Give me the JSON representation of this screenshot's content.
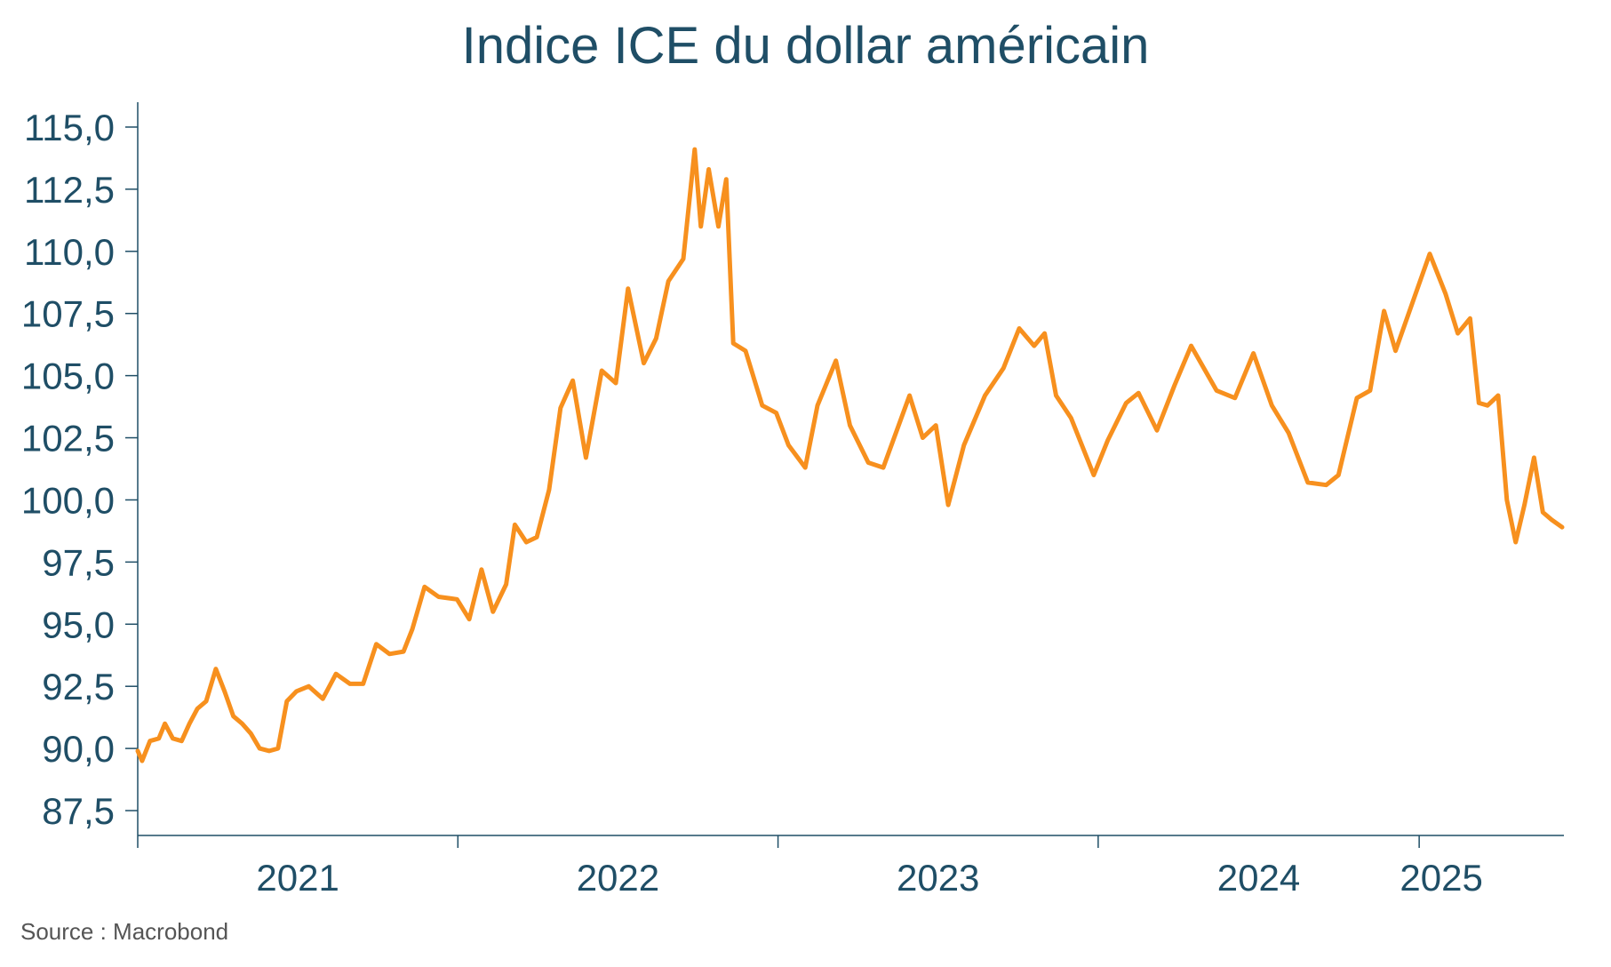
{
  "chart_data": {
    "type": "line",
    "title": "Indice ICE du dollar américain",
    "source": "Source : Macrobond",
    "xlabel": "",
    "ylabel": "",
    "xlim": [
      "2021-01-01",
      "2025-06-15"
    ],
    "ylim": [
      86.5,
      116.0
    ],
    "y_ticks": [
      87.5,
      90.0,
      92.5,
      95.0,
      97.5,
      100.0,
      102.5,
      105.0,
      107.5,
      110.0,
      112.5,
      115.0
    ],
    "y_tick_labels": [
      "87,5",
      "90,0",
      "92,5",
      "95,0",
      "97,5",
      "100,0",
      "102,5",
      "105,0",
      "107,5",
      "110,0",
      "112,5",
      "115,0"
    ],
    "x_ticks": [
      "2021-01-01",
      "2022-01-01",
      "2023-01-01",
      "2024-01-01",
      "2025-01-01"
    ],
    "x_tick_labels": [
      "2021",
      "2022",
      "2023",
      "2024",
      "2025"
    ],
    "grid": false,
    "legend": "none",
    "line_color": "#f7901e",
    "axis_color": "#1f4e66",
    "series": [
      {
        "values": [
          {
            "x": "2021-01-01",
            "y": 89.9
          },
          {
            "x": "2021-01-06",
            "y": 89.5
          },
          {
            "x": "2021-01-15",
            "y": 90.3
          },
          {
            "x": "2021-01-25",
            "y": 90.4
          },
          {
            "x": "2021-02-01",
            "y": 91.0
          },
          {
            "x": "2021-02-10",
            "y": 90.4
          },
          {
            "x": "2021-02-20",
            "y": 90.3
          },
          {
            "x": "2021-03-01",
            "y": 91.0
          },
          {
            "x": "2021-03-10",
            "y": 91.6
          },
          {
            "x": "2021-03-20",
            "y": 91.9
          },
          {
            "x": "2021-03-31",
            "y": 93.2
          },
          {
            "x": "2021-04-10",
            "y": 92.3
          },
          {
            "x": "2021-04-20",
            "y": 91.3
          },
          {
            "x": "2021-04-30",
            "y": 91.0
          },
          {
            "x": "2021-05-10",
            "y": 90.6
          },
          {
            "x": "2021-05-20",
            "y": 90.0
          },
          {
            "x": "2021-05-31",
            "y": 89.9
          },
          {
            "x": "2021-06-10",
            "y": 90.0
          },
          {
            "x": "2021-06-20",
            "y": 91.9
          },
          {
            "x": "2021-07-01",
            "y": 92.3
          },
          {
            "x": "2021-07-15",
            "y": 92.5
          },
          {
            "x": "2021-07-31",
            "y": 92.0
          },
          {
            "x": "2021-08-15",
            "y": 93.0
          },
          {
            "x": "2021-08-31",
            "y": 92.6
          },
          {
            "x": "2021-09-15",
            "y": 92.6
          },
          {
            "x": "2021-09-30",
            "y": 94.2
          },
          {
            "x": "2021-10-15",
            "y": 93.8
          },
          {
            "x": "2021-10-31",
            "y": 93.9
          },
          {
            "x": "2021-11-10",
            "y": 94.8
          },
          {
            "x": "2021-11-24",
            "y": 96.5
          },
          {
            "x": "2021-12-10",
            "y": 96.1
          },
          {
            "x": "2021-12-31",
            "y": 96.0
          },
          {
            "x": "2022-01-14",
            "y": 95.2
          },
          {
            "x": "2022-01-28",
            "y": 97.2
          },
          {
            "x": "2022-02-10",
            "y": 95.5
          },
          {
            "x": "2022-02-25",
            "y": 96.6
          },
          {
            "x": "2022-03-07",
            "y": 99.0
          },
          {
            "x": "2022-03-20",
            "y": 98.3
          },
          {
            "x": "2022-04-01",
            "y": 98.5
          },
          {
            "x": "2022-04-15",
            "y": 100.4
          },
          {
            "x": "2022-04-28",
            "y": 103.7
          },
          {
            "x": "2022-05-12",
            "y": 104.8
          },
          {
            "x": "2022-05-27",
            "y": 101.7
          },
          {
            "x": "2022-06-14",
            "y": 105.2
          },
          {
            "x": "2022-06-30",
            "y": 104.7
          },
          {
            "x": "2022-07-14",
            "y": 108.5
          },
          {
            "x": "2022-08-01",
            "y": 105.5
          },
          {
            "x": "2022-08-15",
            "y": 106.5
          },
          {
            "x": "2022-08-29",
            "y": 108.8
          },
          {
            "x": "2022-09-15",
            "y": 109.7
          },
          {
            "x": "2022-09-28",
            "y": 114.1
          },
          {
            "x": "2022-10-05",
            "y": 111.0
          },
          {
            "x": "2022-10-14",
            "y": 113.3
          },
          {
            "x": "2022-10-25",
            "y": 111.0
          },
          {
            "x": "2022-11-03",
            "y": 112.9
          },
          {
            "x": "2022-11-11",
            "y": 106.3
          },
          {
            "x": "2022-11-25",
            "y": 106.0
          },
          {
            "x": "2022-12-14",
            "y": 103.8
          },
          {
            "x": "2022-12-30",
            "y": 103.5
          },
          {
            "x": "2023-01-13",
            "y": 102.2
          },
          {
            "x": "2023-02-01",
            "y": 101.3
          },
          {
            "x": "2023-02-15",
            "y": 103.8
          },
          {
            "x": "2023-03-08",
            "y": 105.6
          },
          {
            "x": "2023-03-24",
            "y": 103.0
          },
          {
            "x": "2023-04-14",
            "y": 101.5
          },
          {
            "x": "2023-05-01",
            "y": 101.3
          },
          {
            "x": "2023-05-31",
            "y": 104.2
          },
          {
            "x": "2023-06-15",
            "y": 102.5
          },
          {
            "x": "2023-06-30",
            "y": 103.0
          },
          {
            "x": "2023-07-14",
            "y": 99.8
          },
          {
            "x": "2023-08-01",
            "y": 102.2
          },
          {
            "x": "2023-08-25",
            "y": 104.2
          },
          {
            "x": "2023-09-15",
            "y": 105.3
          },
          {
            "x": "2023-10-03",
            "y": 106.9
          },
          {
            "x": "2023-10-20",
            "y": 106.2
          },
          {
            "x": "2023-11-01",
            "y": 106.7
          },
          {
            "x": "2023-11-14",
            "y": 104.2
          },
          {
            "x": "2023-12-01",
            "y": 103.3
          },
          {
            "x": "2023-12-27",
            "y": 101.0
          },
          {
            "x": "2024-01-12",
            "y": 102.4
          },
          {
            "x": "2024-02-02",
            "y": 103.9
          },
          {
            "x": "2024-02-16",
            "y": 104.3
          },
          {
            "x": "2024-03-08",
            "y": 102.8
          },
          {
            "x": "2024-03-28",
            "y": 104.6
          },
          {
            "x": "2024-04-16",
            "y": 106.2
          },
          {
            "x": "2024-05-15",
            "y": 104.4
          },
          {
            "x": "2024-06-05",
            "y": 104.1
          },
          {
            "x": "2024-06-26",
            "y": 105.9
          },
          {
            "x": "2024-07-17",
            "y": 103.8
          },
          {
            "x": "2024-08-05",
            "y": 102.7
          },
          {
            "x": "2024-08-27",
            "y": 100.7
          },
          {
            "x": "2024-09-17",
            "y": 100.6
          },
          {
            "x": "2024-10-01",
            "y": 101.0
          },
          {
            "x": "2024-10-22",
            "y": 104.1
          },
          {
            "x": "2024-11-06",
            "y": 104.4
          },
          {
            "x": "2024-11-22",
            "y": 107.6
          },
          {
            "x": "2024-12-05",
            "y": 106.0
          },
          {
            "x": "2024-12-26",
            "y": 108.1
          },
          {
            "x": "2025-01-13",
            "y": 109.9
          },
          {
            "x": "2025-01-31",
            "y": 108.3
          },
          {
            "x": "2025-02-14",
            "y": 106.7
          },
          {
            "x": "2025-02-28",
            "y": 107.3
          },
          {
            "x": "2025-03-10",
            "y": 103.9
          },
          {
            "x": "2025-03-20",
            "y": 103.8
          },
          {
            "x": "2025-04-01",
            "y": 104.2
          },
          {
            "x": "2025-04-11",
            "y": 100.0
          },
          {
            "x": "2025-04-21",
            "y": 98.3
          },
          {
            "x": "2025-05-01",
            "y": 99.8
          },
          {
            "x": "2025-05-12",
            "y": 101.7
          },
          {
            "x": "2025-05-22",
            "y": 99.5
          },
          {
            "x": "2025-06-01",
            "y": 99.2
          },
          {
            "x": "2025-06-13",
            "y": 98.9
          }
        ]
      }
    ]
  }
}
